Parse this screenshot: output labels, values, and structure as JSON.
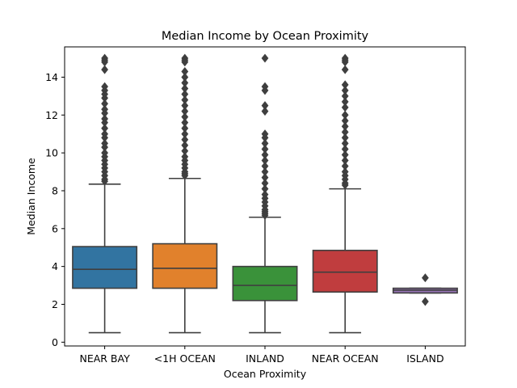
{
  "chart_data": {
    "type": "box",
    "title": "Median Income by Ocean Proximity",
    "xlabel": "Ocean Proximity",
    "ylabel": "Median Income",
    "ylim": [
      -0.2,
      15.6
    ],
    "yticks": [
      0,
      2,
      4,
      6,
      8,
      10,
      12,
      14
    ],
    "grid": false,
    "line_color": "#3f3f3f",
    "categories": [
      "NEAR BAY",
      "<1H OCEAN",
      "INLAND",
      "NEAR OCEAN",
      "ISLAND"
    ],
    "boxes": [
      {
        "category": "NEAR BAY",
        "color": "#3274a1",
        "whisker_low": 0.5,
        "q1": 2.85,
        "median": 3.85,
        "q3": 5.05,
        "whisker_high": 8.35,
        "outliers": [
          15.0,
          14.9,
          14.8,
          14.4,
          13.5,
          13.3,
          13.1,
          12.9,
          12.6,
          12.3,
          12.1,
          11.8,
          11.6,
          11.3,
          11.0,
          10.8,
          10.5,
          10.3,
          10.0,
          9.8,
          9.6,
          9.4,
          9.2,
          9.0,
          8.8,
          8.6,
          8.5
        ]
      },
      {
        "category": "<1H OCEAN",
        "color": "#e1812c",
        "whisker_low": 0.5,
        "q1": 2.85,
        "median": 3.9,
        "q3": 5.2,
        "whisker_high": 8.65,
        "outliers": [
          15.0,
          14.9,
          14.8,
          14.3,
          14.0,
          13.7,
          13.4,
          13.1,
          12.8,
          12.5,
          12.2,
          11.9,
          11.6,
          11.3,
          11.0,
          10.7,
          10.4,
          10.1,
          9.8,
          9.6,
          9.4,
          9.2,
          9.0,
          8.9,
          8.8
        ]
      },
      {
        "category": "INLAND",
        "color": "#3a923a",
        "whisker_low": 0.5,
        "q1": 2.2,
        "median": 3.0,
        "q3": 4.0,
        "whisker_high": 6.6,
        "outliers": [
          15.0,
          13.5,
          13.3,
          12.5,
          12.2,
          11.0,
          10.8,
          10.5,
          10.2,
          9.9,
          9.6,
          9.3,
          9.0,
          8.7,
          8.4,
          8.1,
          7.8,
          7.6,
          7.4,
          7.2,
          7.0,
          6.9,
          6.8,
          6.7
        ]
      },
      {
        "category": "NEAR OCEAN",
        "color": "#c03d3e",
        "whisker_low": 0.5,
        "q1": 2.65,
        "median": 3.7,
        "q3": 4.85,
        "whisker_high": 8.1,
        "outliers": [
          15.0,
          14.9,
          14.8,
          14.4,
          13.6,
          13.3,
          13.0,
          12.7,
          12.4,
          12.0,
          11.7,
          11.4,
          11.1,
          10.8,
          10.5,
          10.2,
          9.9,
          9.6,
          9.3,
          9.0,
          8.8,
          8.6,
          8.4,
          8.3
        ]
      },
      {
        "category": "ISLAND",
        "color": "#9372b2",
        "whisker_low": 2.6,
        "q1": 2.6,
        "median": 2.75,
        "q3": 2.85,
        "whisker_high": 2.85,
        "outliers": [
          3.4,
          2.15
        ]
      }
    ]
  }
}
